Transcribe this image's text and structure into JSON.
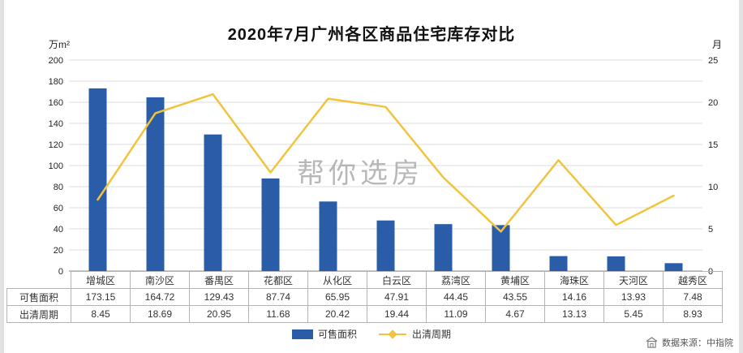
{
  "title": "2020年7月广州各区商品住宅库存对比",
  "watermark": "帮你选房",
  "source": "数据来源：中指院",
  "chart_data": {
    "type": "bar",
    "subtype": "bar-line-combo",
    "title": "2020年7月广州各区商品住宅库存对比",
    "categories": [
      "增城区",
      "南沙区",
      "番禺区",
      "花都区",
      "从化区",
      "白云区",
      "荔湾区",
      "黄埔区",
      "海珠区",
      "天河区",
      "越秀区"
    ],
    "series": [
      {
        "name": "可售面积",
        "kind": "bar",
        "axis": "left",
        "color": "#2a5ca8",
        "values": [
          173.15,
          164.72,
          129.43,
          87.74,
          65.95,
          47.91,
          44.45,
          43.55,
          14.16,
          13.93,
          7.48
        ]
      },
      {
        "name": "出清周期",
        "kind": "line",
        "axis": "right",
        "color": "#f2c33d",
        "values": [
          8.45,
          18.69,
          20.95,
          11.68,
          20.42,
          19.44,
          11.09,
          4.67,
          13.13,
          5.45,
          8.93
        ]
      }
    ],
    "left_axis": {
      "label": "万m²",
      "min": 0,
      "max": 200,
      "step": 20
    },
    "right_axis": {
      "label": "月",
      "min": 0,
      "max": 25,
      "step": 5
    },
    "grid": true,
    "legend_position": "bottom"
  }
}
